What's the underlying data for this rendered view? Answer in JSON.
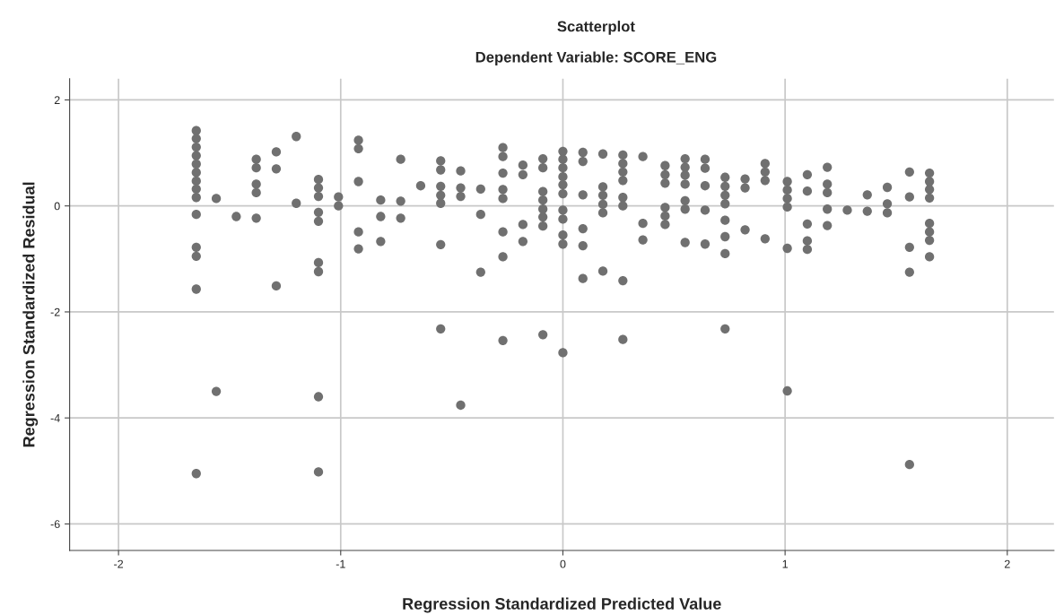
{
  "chart_data": {
    "type": "scatter",
    "title": "Scatterplot",
    "subtitle": "Dependent Variable: SCORE_ENG",
    "xlabel": "Regression Standardized Predicted Value",
    "ylabel": "Regression Standardized Residual",
    "x": [
      -1.65,
      -1.65,
      -1.65,
      -1.65,
      -1.65,
      -1.65,
      -1.65,
      -1.65,
      -1.65,
      -1.65,
      -1.65,
      -1.65,
      -1.65,
      -1.65,
      -1.56,
      -1.56,
      -1.47,
      -1.38,
      -1.38,
      -1.38,
      -1.38,
      -1.38,
      -1.29,
      -1.29,
      -1.29,
      -1.2,
      -1.2,
      -1.1,
      -1.1,
      -1.1,
      -1.1,
      -1.1,
      -1.1,
      -1.1,
      -1.1,
      -1.1,
      -1.01,
      -1.01,
      -0.92,
      -0.92,
      -0.92,
      -0.92,
      -0.92,
      -0.82,
      -0.82,
      -0.82,
      -0.73,
      -0.73,
      -0.73,
      -0.64,
      -0.55,
      -0.55,
      -0.55,
      -0.55,
      -0.55,
      -0.55,
      -0.55,
      -0.46,
      -0.46,
      -0.46,
      -0.46,
      -0.37,
      -0.37,
      -0.37,
      -0.27,
      -0.27,
      -0.27,
      -0.27,
      -0.27,
      -0.27,
      -0.27,
      -0.27,
      -0.18,
      -0.18,
      -0.18,
      -0.18,
      -0.09,
      -0.09,
      -0.09,
      -0.09,
      -0.09,
      -0.09,
      -0.09,
      -0.09,
      0.0,
      0.0,
      0.0,
      0.0,
      0.0,
      0.0,
      0.0,
      0.0,
      0.0,
      0.0,
      0.0,
      0.09,
      0.09,
      0.09,
      0.09,
      0.09,
      0.09,
      0.18,
      0.18,
      0.18,
      0.18,
      0.18,
      0.18,
      0.27,
      0.27,
      0.27,
      0.27,
      0.27,
      0.27,
      0.27,
      0.27,
      0.36,
      0.36,
      0.36,
      0.46,
      0.46,
      0.46,
      0.46,
      0.46,
      0.46,
      0.55,
      0.55,
      0.55,
      0.55,
      0.55,
      0.55,
      0.55,
      0.64,
      0.64,
      0.64,
      0.64,
      0.64,
      0.73,
      0.73,
      0.73,
      0.73,
      0.73,
      0.73,
      0.73,
      0.73,
      0.82,
      0.82,
      0.82,
      0.91,
      0.91,
      0.91,
      0.91,
      1.01,
      1.01,
      1.01,
      1.01,
      1.01,
      1.01,
      1.1,
      1.1,
      1.1,
      1.1,
      1.1,
      1.19,
      1.19,
      1.19,
      1.19,
      1.19,
      1.28,
      1.37,
      1.37,
      1.46,
      1.46,
      1.46,
      1.56,
      1.56,
      1.56,
      1.56,
      1.56,
      1.65,
      1.65,
      1.65,
      1.65,
      1.65,
      1.65,
      1.65,
      1.65
    ],
    "values": [
      1.42,
      1.27,
      1.11,
      0.95,
      0.79,
      0.63,
      0.47,
      0.32,
      0.16,
      -0.16,
      -0.78,
      -0.95,
      -1.57,
      -5.05,
      0.14,
      -3.5,
      -0.2,
      0.88,
      0.72,
      0.41,
      0.25,
      -0.23,
      1.02,
      0.7,
      -1.51,
      1.31,
      0.05,
      0.5,
      0.34,
      0.18,
      -0.12,
      -0.29,
      -1.07,
      -1.24,
      -3.6,
      -5.02,
      0.17,
      0.0,
      1.24,
      1.08,
      0.46,
      -0.49,
      -0.81,
      0.11,
      -0.2,
      -0.67,
      0.88,
      0.09,
      -0.23,
      0.38,
      0.85,
      0.68,
      0.37,
      0.2,
      0.05,
      -0.73,
      -2.32,
      0.66,
      0.34,
      0.18,
      -3.76,
      0.32,
      -0.16,
      -1.25,
      1.1,
      0.93,
      0.62,
      0.31,
      0.14,
      -0.49,
      -0.96,
      -2.54,
      0.77,
      0.59,
      -0.35,
      -0.67,
      0.89,
      0.72,
      0.27,
      0.11,
      -0.06,
      -0.21,
      -0.38,
      -2.43,
      1.03,
      0.88,
      0.72,
      0.55,
      0.4,
      0.23,
      -0.08,
      -0.25,
      -0.55,
      -0.72,
      -2.77,
      1.01,
      0.84,
      0.21,
      -0.43,
      -0.75,
      -1.37,
      0.98,
      0.36,
      0.2,
      0.03,
      -0.13,
      -1.23,
      0.96,
      0.8,
      0.64,
      0.48,
      0.16,
      0.0,
      -1.41,
      -2.52,
      0.93,
      -0.33,
      -0.64,
      0.76,
      0.59,
      0.43,
      -0.03,
      -0.19,
      -0.35,
      0.89,
      0.73,
      0.58,
      0.41,
      0.1,
      -0.06,
      -0.69,
      0.88,
      0.71,
      0.38,
      -0.08,
      -0.72,
      0.54,
      0.37,
      0.2,
      0.04,
      -0.27,
      -0.58,
      -0.9,
      -2.32,
      0.51,
      0.34,
      -0.45,
      0.8,
      0.64,
      0.48,
      -0.62,
      0.46,
      0.3,
      0.14,
      -0.02,
      -0.8,
      -3.49,
      0.59,
      0.28,
      -0.34,
      -0.66,
      -0.82,
      0.73,
      0.41,
      0.25,
      -0.06,
      -0.37,
      -0.08,
      0.21,
      -0.1,
      0.35,
      0.04,
      -0.13,
      0.64,
      0.17,
      -0.78,
      -1.25,
      -4.88,
      0.62,
      0.46,
      0.31,
      0.15,
      -0.33,
      -0.49,
      -0.65,
      -0.96
    ],
    "color": "#707070",
    "marker": "circle",
    "xlim": [
      -2.22,
      2.21
    ],
    "xticks": [
      {
        "value": -2,
        "label": "-2"
      },
      {
        "value": -1,
        "label": "-1"
      },
      0,
      1,
      2
    ],
    "ylim": [
      -6.5,
      2.4
    ],
    "yticks": [
      {
        "value": -6,
        "label": "-6"
      },
      {
        "value": -4,
        "label": "-4"
      },
      {
        "value": -2,
        "label": "-2"
      },
      0,
      2
    ],
    "grid": true
  }
}
